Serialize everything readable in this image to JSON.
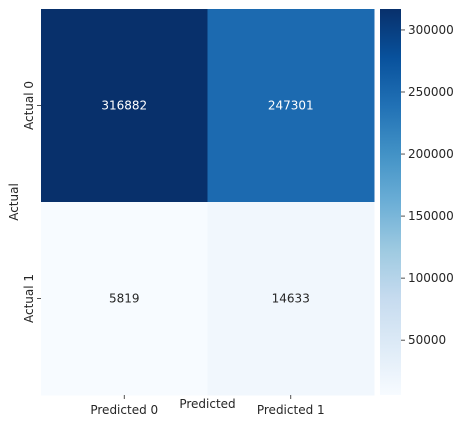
{
  "chart_data": {
    "type": "heatmap",
    "xlabel": "Predicted",
    "ylabel": "Actual",
    "x_categories": [
      "Predicted 0",
      "Predicted 1"
    ],
    "y_categories": [
      "Actual 0",
      "Actual 1"
    ],
    "values": [
      [
        316882,
        247301
      ],
      [
        5819,
        14633
      ]
    ],
    "colormap": "Blues",
    "vmin": 5819,
    "vmax": 316882,
    "colorbar_ticks": [
      50000,
      100000,
      150000,
      200000,
      250000,
      300000
    ],
    "colorbar_tick_labels": [
      "50000",
      "100000",
      "150000",
      "200000",
      "250000",
      "300000"
    ],
    "grid": false,
    "legend": "colorbar-right"
  }
}
